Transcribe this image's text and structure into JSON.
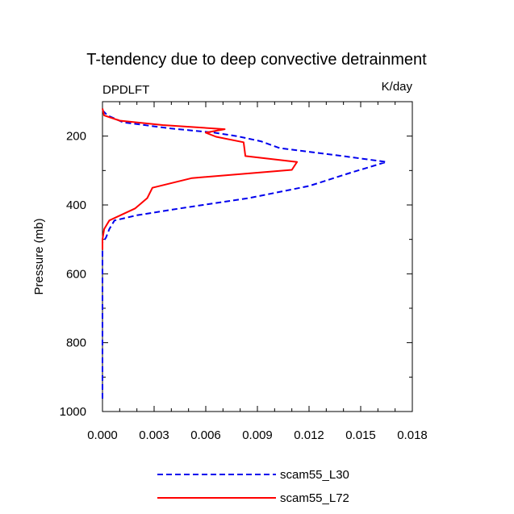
{
  "chart_data": {
    "type": "line",
    "title": "T-tendency due to deep convective detrainment",
    "left_string": "DPDLFT",
    "right_string": "K/day",
    "xlabel": "",
    "ylabel": "Pressure (mb)",
    "xlim": [
      0.0,
      0.018
    ],
    "ylim": [
      1000,
      100
    ],
    "y_reversed": true,
    "grid": false,
    "legend_position": "bottom",
    "x_ticks": [
      "0.000",
      "0.003",
      "0.006",
      "0.009",
      "0.012",
      "0.015",
      "0.018"
    ],
    "y_ticks": [
      "200",
      "400",
      "600",
      "800",
      "1000"
    ],
    "series": [
      {
        "name": "scam55_L30",
        "color": "#0000ee",
        "style": "dashed",
        "points": [
          [
            0.0,
            125
          ],
          [
            0.0003,
            140
          ],
          [
            0.0012,
            160
          ],
          [
            0.004,
            178
          ],
          [
            0.0065,
            190
          ],
          [
            0.0078,
            200
          ],
          [
            0.0092,
            215
          ],
          [
            0.0103,
            235
          ],
          [
            0.0135,
            255
          ],
          [
            0.0165,
            275
          ],
          [
            0.0145,
            305
          ],
          [
            0.012,
            345
          ],
          [
            0.0085,
            380
          ],
          [
            0.0045,
            410
          ],
          [
            0.002,
            430
          ],
          [
            0.0007,
            445
          ],
          [
            0.0004,
            470
          ],
          [
            0.0002,
            495
          ],
          [
            0.0,
            510
          ],
          [
            0.0,
            550
          ],
          [
            0.0,
            600
          ],
          [
            0.0,
            700
          ],
          [
            0.0,
            800
          ],
          [
            0.0,
            900
          ],
          [
            0.0,
            970
          ]
        ]
      },
      {
        "name": "scam55_L72",
        "color": "#ff0000",
        "style": "solid",
        "points": [
          [
            0.0,
            120
          ],
          [
            0.0001,
            140
          ],
          [
            0.001,
            155
          ],
          [
            0.0035,
            168
          ],
          [
            0.0071,
            180
          ],
          [
            0.006,
            190
          ],
          [
            0.0066,
            202
          ],
          [
            0.0082,
            218
          ],
          [
            0.0083,
            258
          ],
          [
            0.0113,
            275
          ],
          [
            0.011,
            298
          ],
          [
            0.0052,
            322
          ],
          [
            0.0029,
            350
          ],
          [
            0.0026,
            380
          ],
          [
            0.0019,
            410
          ],
          [
            0.0004,
            445
          ],
          [
            0.0001,
            470
          ],
          [
            0.0,
            500
          ],
          [
            0.0,
            530
          ]
        ]
      }
    ]
  }
}
